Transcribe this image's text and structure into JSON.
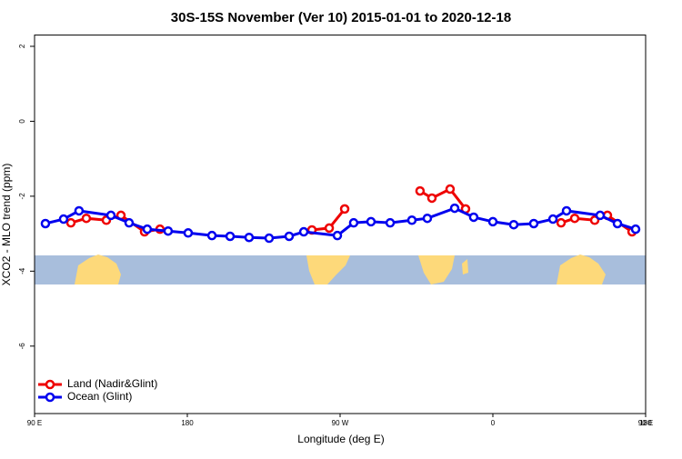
{
  "chart_data": {
    "type": "line",
    "title": "30S-15S November (Ver 10)   2015-01-01 to 2020-12-18",
    "xlabel": "Longitude (deg E)",
    "ylabel": "XCO2 - MLO trend (ppm)",
    "xlim": [
      90,
      450
    ],
    "xticks": [
      {
        "value": 90,
        "label": "90 E"
      },
      {
        "value": 180,
        "label": "180"
      },
      {
        "value": 270,
        "label": "90 W"
      },
      {
        "value": 360,
        "label": "0"
      },
      {
        "value": 450,
        "label": "90 E"
      },
      {
        "value": 540,
        "label": "180"
      }
    ],
    "ylim": [
      -7.8,
      2.3
    ],
    "yticks": [
      2,
      0,
      -2,
      -4,
      -6
    ],
    "legend": "bottom-left",
    "series": [
      {
        "name": "Land (Nadir&Glint)",
        "color": "#ee0000",
        "x": [
          111.4,
          120.5,
          132.3,
          140.9,
          154.8,
          163.9,
          null,
          253.4,
          263.6,
          272.7,
          null,
          317.1,
          324.1,
          334.8,
          343.9,
          null,
          400.2,
          408.2,
          420,
          427.5,
          442
        ],
        "values": [
          -2.71,
          -2.59,
          -2.64,
          -2.51,
          -2.95,
          -2.88,
          null,
          -2.9,
          -2.85,
          -2.34,
          null,
          -1.86,
          -2.05,
          -1.81,
          -2.34,
          null,
          -2.71,
          -2.59,
          -2.64,
          -2.51,
          -2.95
        ]
      },
      {
        "name": "Ocean (Glint)",
        "color": "#0000ee",
        "x": [
          96.4,
          107.1,
          116.2,
          135,
          145.7,
          156.4,
          168.7,
          180.5,
          194.5,
          205.2,
          216.4,
          228.2,
          240,
          248.6,
          268.4,
          278,
          288.2,
          299.5,
          312.3,
          321.4,
          337.5,
          348.7,
          360,
          372.3,
          384.1,
          395.4,
          403.4,
          423.2,
          433.4,
          444.1
        ],
        "values": [
          -2.73,
          -2.61,
          -2.39,
          -2.51,
          -2.71,
          -2.88,
          -2.93,
          -2.98,
          -3.05,
          -3.07,
          -3.1,
          -3.12,
          -3.07,
          -2.95,
          -3.05,
          -2.71,
          -2.68,
          -2.71,
          -2.64,
          -2.59,
          -2.32,
          -2.56,
          -2.68,
          -2.76,
          -2.73,
          -2.61,
          -2.39,
          -2.51,
          -2.73,
          -2.88
        ]
      }
    ]
  }
}
